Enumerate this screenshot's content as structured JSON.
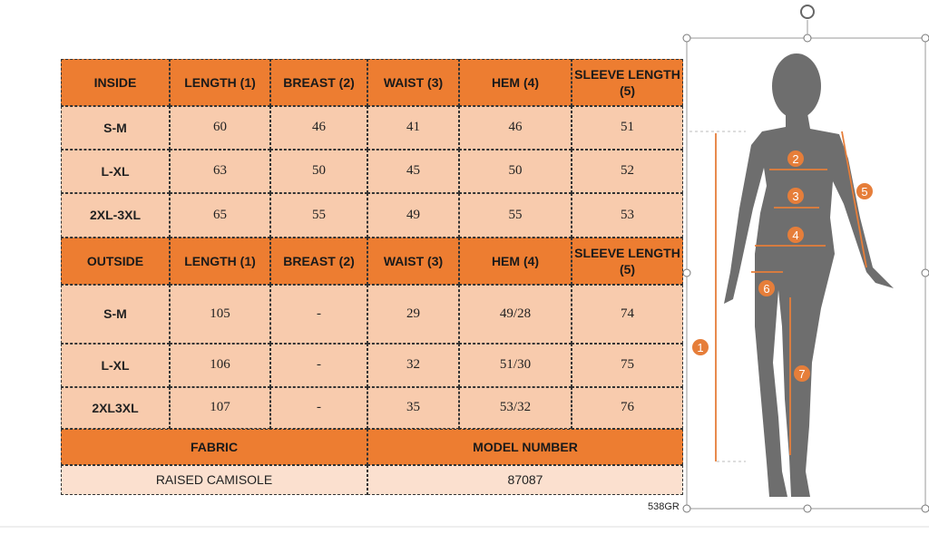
{
  "sections": [
    {
      "header": [
        "INSIDE",
        "LENGTH (1)",
        "BREAST (2)",
        "WAIST (3)",
        "HEM (4)",
        "SLEEVE LENGTH (5)"
      ],
      "rows": [
        [
          "S-M",
          "60",
          "46",
          "41",
          "46",
          "51"
        ],
        [
          "L-XL",
          "63",
          "50",
          "45",
          "50",
          "52"
        ],
        [
          "2XL-3XL",
          "65",
          "55",
          "49",
          "55",
          "53"
        ]
      ]
    },
    {
      "header": [
        "OUTSIDE",
        "LENGTH (1)",
        "BREAST (2)",
        "WAIST (3)",
        "HEM (4)",
        "SLEEVE LENGTH (5)"
      ],
      "rows": [
        [
          "S-M",
          "105",
          "-",
          "29",
          "49/28",
          "74"
        ],
        [
          "L-XL",
          "106",
          "-",
          "32",
          "51/30",
          "75"
        ],
        [
          "2XL3XL",
          "107",
          "-",
          "35",
          "53/32",
          "76"
        ]
      ]
    }
  ],
  "footer": {
    "header": [
      "FABRIC",
      "MODEL NUMBER"
    ],
    "row": [
      "RAISED CAMISOLE",
      "87087"
    ]
  },
  "figure": {
    "markers": [
      "1",
      "2",
      "3",
      "4",
      "5",
      "6",
      "7"
    ]
  },
  "label": "538GR"
}
